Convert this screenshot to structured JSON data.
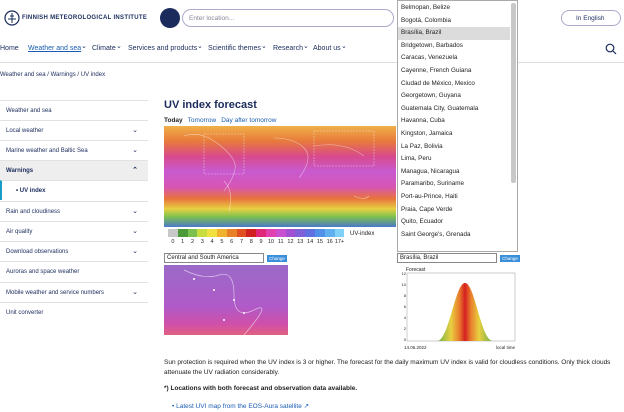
{
  "header": {
    "logo": "FINNISH METEOROLOGICAL INSTITUTE",
    "search_placeholder": "Enter location...",
    "language": "In English"
  },
  "location_dropdown": {
    "options": [
      "Belmopan, Belize",
      "Bogotá, Colombia",
      "Brasília, Brazil",
      "Bridgetown, Barbados",
      "Caracas, Venezuela",
      "Cayenne, French Guiana",
      "Ciudad de México, Mexico",
      "Georgetown, Guyana",
      "Guatemala City, Guatemala",
      "Havanna, Cuba",
      "Kingston, Jamaica",
      "La Paz, Bolivia",
      "Lima, Peru",
      "Managua, Nicaragua",
      "Paramaribo, Suriname",
      "Port-au-Prince, Haiti",
      "Praia, Cape Verde",
      "Quito, Ecuador",
      "Saint George's, Grenada"
    ]
  },
  "nav": {
    "items": [
      "Home",
      "Weather and sea",
      "Climate",
      "Services and products",
      "Scientific themes",
      "Research",
      "About us"
    ]
  },
  "breadcrumb": [
    "Weather and sea",
    "Warnings",
    "UV index"
  ],
  "sidebar": [
    "Weather and sea",
    "Local weather",
    "Marine weather and Baltic Sea",
    "Warnings",
    "UV index",
    "Rain and cloudiness",
    "Air quality",
    "Download observations",
    "Auroras and space weather",
    "Mobile weather and service numbers",
    "Unit converter"
  ],
  "main": {
    "title": "UV index forecast",
    "tabs": [
      "Today",
      "Tomorrow",
      "Day after tomorrow"
    ],
    "legend": {
      "labels": [
        "0",
        "1",
        "2",
        "3",
        "4",
        "5",
        "6",
        "7",
        "8",
        "9",
        "10",
        "11",
        "12",
        "13",
        "14",
        "15",
        "16",
        "17+"
      ],
      "title": "UV-index"
    },
    "region": {
      "select": "Central and South America",
      "button": "Change"
    },
    "location": {
      "select": "Brasília, Brazil",
      "button": "Change"
    },
    "forecast": {
      "title": "Forecast",
      "yticks": [
        "12",
        "10",
        "8",
        "6",
        "4",
        "2",
        "0"
      ],
      "date": "14.06.2022",
      "x_label": "local time"
    },
    "paragraph": "Sun protection is required when the UV index is 3 or higher. The forecast for the daily maximum UV index is valid for cloudless conditions. Only thick clouds attenuate the UV radiation considerably.",
    "note": "*) Locations with both forecast and observation data available.",
    "link": "Latest UVI map from the EOS-Aura satellite"
  }
}
